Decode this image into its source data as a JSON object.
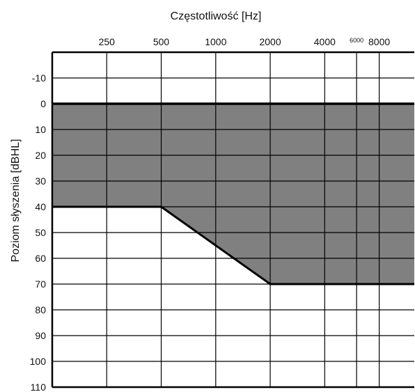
{
  "chart_data": {
    "type": "area",
    "title": "Częstotliwość [Hz]",
    "xlabel": "Częstotliwość [Hz]",
    "ylabel": "Poziom słyszenia [dBHL]",
    "x_ticks": [
      {
        "value": 250,
        "label": "250",
        "minor": false
      },
      {
        "value": 500,
        "label": "500",
        "minor": false
      },
      {
        "value": 1000,
        "label": "1000",
        "minor": false
      },
      {
        "value": 2000,
        "label": "2000",
        "minor": false
      },
      {
        "value": 4000,
        "label": "4000",
        "minor": false
      },
      {
        "value": 6000,
        "label": "6000",
        "minor": true
      },
      {
        "value": 8000,
        "label": "8000",
        "minor": false
      }
    ],
    "x_scale": "log",
    "xlim": [
      125,
      12500
    ],
    "y_ticks": [
      -10,
      0,
      10,
      20,
      30,
      40,
      50,
      60,
      70,
      80,
      90,
      100,
      110
    ],
    "ylim": [
      -20,
      110
    ],
    "y_inverted": true,
    "grid": true,
    "shaded_region": {
      "color": "#808080",
      "upper_boundary_db": 0,
      "lower_boundary": [
        {
          "x": 125,
          "y": 40
        },
        {
          "x": 500,
          "y": 40
        },
        {
          "x": 2000,
          "y": 70
        },
        {
          "x": 12500,
          "y": 70
        }
      ]
    },
    "colors": {
      "shade": "#808080",
      "line": "#000000",
      "grid": "#000000"
    }
  }
}
